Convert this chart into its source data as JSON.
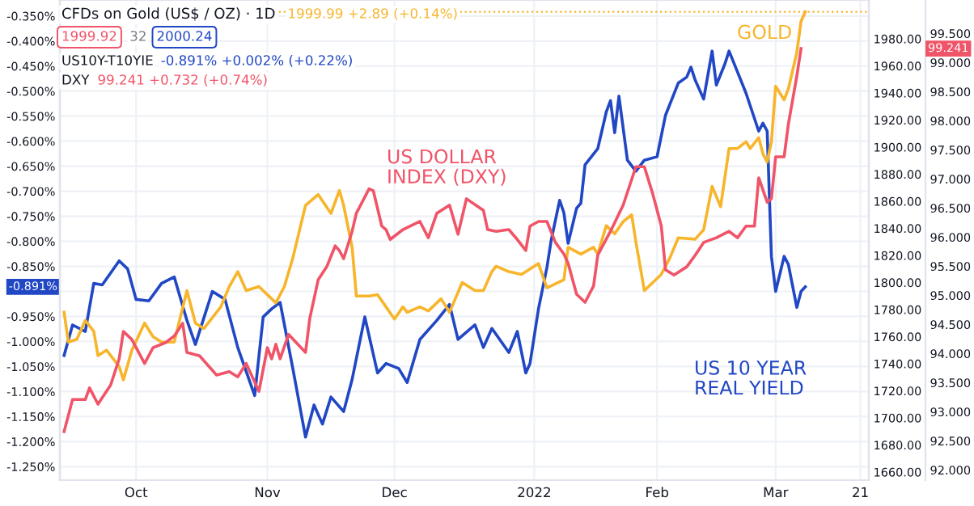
{
  "chart_data": {
    "type": "line",
    "title": "CFDs on Gold (US$ / OZ) · 1D",
    "annotations": [
      "1999.99 +2.89 (+0.14%)",
      "1999.92",
      "32",
      "2000.24",
      "US10Y-T10YIE",
      "-0.891% +0.002% (+0.22%)",
      "DXY",
      "99.241 +0.732 (+0.74%)",
      "-0.891%",
      "99.241"
    ],
    "xlim": [
      "2021-09-13",
      "2022-03-23"
    ],
    "xticks": [
      {
        "value": "2021-10-01",
        "label": "Oct"
      },
      {
        "value": "2021-11-01",
        "label": "Nov"
      },
      {
        "value": "2021-12-01",
        "label": "Dec"
      },
      {
        "value": "2022-01-03",
        "label": "2022"
      },
      {
        "value": "2022-02-01",
        "label": "Feb"
      },
      {
        "value": "2022-03-01",
        "label": "Mar"
      },
      {
        "value": "2022-03-21",
        "label": "21"
      }
    ],
    "ylim": [
      -1.277,
      -0.318
    ],
    "yticks": [
      {
        "value": -0.35,
        "label": "-0.350%"
      },
      {
        "value": -0.4,
        "label": "-0.400%"
      },
      {
        "value": -0.45,
        "label": "-0.450%"
      },
      {
        "value": -0.5,
        "label": "-0.500%"
      },
      {
        "value": -0.55,
        "label": "-0.550%"
      },
      {
        "value": -0.6,
        "label": "-0.600%"
      },
      {
        "value": -0.65,
        "label": "-0.650%"
      },
      {
        "value": -0.7,
        "label": "-0.700%"
      },
      {
        "value": -0.75,
        "label": "-0.750%"
      },
      {
        "value": -0.8,
        "label": "-0.800%"
      },
      {
        "value": -0.85,
        "label": "-0.850%"
      },
      {
        "value": -0.9,
        "label": null
      },
      {
        "value": -0.95,
        "label": "-0.950%"
      },
      {
        "value": -1.0,
        "label": "-1.000%"
      },
      {
        "value": -1.05,
        "label": "-1.050%"
      },
      {
        "value": -1.1,
        "label": "-1.100%"
      },
      {
        "value": -1.15,
        "label": "-1.150%"
      },
      {
        "value": -1.2,
        "label": "-1.200%"
      },
      {
        "value": -1.25,
        "label": "-1.250%"
      }
    ],
    "y2lim": [
      1654,
      2008.7
    ],
    "y2ticks": [
      {
        "value": 1660,
        "label": "1660.00"
      },
      {
        "value": 1680,
        "label": "1680.00"
      },
      {
        "value": 1700,
        "label": "1700.00"
      },
      {
        "value": 1720,
        "label": "1720.00"
      },
      {
        "value": 1740,
        "label": "1740.00"
      },
      {
        "value": 1760,
        "label": "1760.00"
      },
      {
        "value": 1780,
        "label": "1780.00"
      },
      {
        "value": 1800,
        "label": "1800.00"
      },
      {
        "value": 1820,
        "label": "1820.00"
      },
      {
        "value": 1840,
        "label": "1840.00"
      },
      {
        "value": 1860,
        "label": "1860.00"
      },
      {
        "value": 1880,
        "label": "1880.00"
      },
      {
        "value": 1900,
        "label": "1900.00"
      },
      {
        "value": 1920,
        "label": "1920.00"
      },
      {
        "value": 1940,
        "label": "1940.00"
      },
      {
        "value": 1960,
        "label": "1960.00"
      },
      {
        "value": 1980,
        "label": "1980.00"
      }
    ],
    "y3lim": [
      91.825,
      100.075
    ],
    "y3ticks": [
      {
        "value": 92.0,
        "label": "92.000"
      },
      {
        "value": 92.5,
        "label": "92.500"
      },
      {
        "value": 93.0,
        "label": "93.000"
      },
      {
        "value": 93.5,
        "label": "93.500"
      },
      {
        "value": 94.0,
        "label": "94.000"
      },
      {
        "value": 94.5,
        "label": "94.500"
      },
      {
        "value": 95.0,
        "label": "95.000"
      },
      {
        "value": 95.5,
        "label": "95.500"
      },
      {
        "value": 96.0,
        "label": "96.000"
      },
      {
        "value": 96.5,
        "label": "96.500"
      },
      {
        "value": 97.0,
        "label": "97.000"
      },
      {
        "value": 97.5,
        "label": "97.500"
      },
      {
        "value": 98.0,
        "label": "98.000"
      },
      {
        "value": 98.5,
        "label": "98.500"
      },
      {
        "value": 99.0,
        "label": "99.000"
      },
      {
        "value": 99.5,
        "label": "99.500"
      }
    ],
    "grid": true,
    "ref_lines": [
      {
        "axis": "y2",
        "value": 2000,
        "color": "#f7b52c",
        "line_style": "dotted"
      }
    ],
    "series": [
      {
        "name": "GOLD",
        "color": "#f7b52c",
        "axis": "y2",
        "x": [
          "2021-09-14",
          "2021-09-15",
          "2021-09-17",
          "2021-09-19",
          "2021-09-21",
          "2021-09-22",
          "2021-09-24",
          "2021-09-27",
          "2021-09-28",
          "2021-09-30",
          "2021-10-03",
          "2021-10-05",
          "2021-10-07",
          "2021-10-10",
          "2021-10-13",
          "2021-10-15",
          "2021-10-17",
          "2021-10-21",
          "2021-10-23",
          "2021-10-25",
          "2021-10-27",
          "2021-10-30",
          "2021-11-02",
          "2021-11-03",
          "2021-11-05",
          "2021-11-07",
          "2021-11-10",
          "2021-11-13",
          "2021-11-16",
          "2021-11-18",
          "2021-11-19",
          "2021-11-21",
          "2021-11-22",
          "2021-11-25",
          "2021-11-27",
          "2021-11-29",
          "2021-12-01",
          "2021-12-03",
          "2021-12-04",
          "2021-12-07",
          "2021-12-09",
          "2021-12-12",
          "2021-12-14",
          "2021-12-17",
          "2021-12-20",
          "2021-12-22",
          "2021-12-24",
          "2021-12-25",
          "2021-12-28",
          "2021-12-31",
          "2022-01-04",
          "2022-01-06",
          "2022-01-10",
          "2022-01-11",
          "2022-01-14",
          "2022-01-17",
          "2022-01-18",
          "2022-01-20",
          "2022-01-22",
          "2022-01-24",
          "2022-01-26",
          "2022-01-27",
          "2022-01-29",
          "2022-02-02",
          "2022-02-04",
          "2022-02-06",
          "2022-02-10",
          "2022-02-12",
          "2022-02-14",
          "2022-02-16",
          "2022-02-18",
          "2022-02-20",
          "2022-02-22",
          "2022-02-23",
          "2022-02-25",
          "2022-02-26",
          "2022-02-27",
          "2022-02-28",
          "2022-03-01",
          "2022-03-03",
          "2022-03-04",
          "2022-03-06",
          "2022-03-07",
          "2022-03-08"
        ],
        "values": [
          1778,
          1756,
          1758,
          1772,
          1764,
          1746,
          1750,
          1738,
          1728,
          1750,
          1770,
          1760,
          1756,
          1756,
          1794,
          1770,
          1766,
          1782,
          1797,
          1808,
          1794,
          1797,
          1788,
          1785,
          1797,
          1818,
          1857,
          1865,
          1851,
          1868,
          1857,
          1826,
          1790,
          1790,
          1791,
          1782,
          1773,
          1782,
          1778,
          1782,
          1779,
          1788,
          1778,
          1800,
          1794,
          1794,
          1808,
          1812,
          1808,
          1806,
          1814,
          1796,
          1802,
          1826,
          1821,
          1826,
          1821,
          1842,
          1836,
          1845,
          1850,
          1830,
          1794,
          1806,
          1818,
          1833,
          1832,
          1839,
          1871,
          1856,
          1899,
          1899,
          1904,
          1899,
          1907,
          1895,
          1889,
          1904,
          1945,
          1935,
          1943,
          1970,
          1993,
          2000
        ]
      },
      {
        "name": "US DOLLAR\nINDEX (DXY)",
        "color": "#f05468",
        "axis": "y3",
        "x": [
          "2021-09-14",
          "2021-09-16",
          "2021-09-19",
          "2021-09-20",
          "2021-09-22",
          "2021-09-25",
          "2021-09-27",
          "2021-09-28",
          "2021-09-30",
          "2021-10-03",
          "2021-10-05",
          "2021-10-08",
          "2021-10-10",
          "2021-10-12",
          "2021-10-13",
          "2021-10-16",
          "2021-10-20",
          "2021-10-23",
          "2021-10-25",
          "2021-10-27",
          "2021-10-30",
          "2021-11-01",
          "2021-11-02",
          "2021-11-03",
          "2021-11-04",
          "2021-11-06",
          "2021-11-10",
          "2021-11-11",
          "2021-11-13",
          "2021-11-15",
          "2021-11-17",
          "2021-11-18",
          "2021-11-19",
          "2021-11-21",
          "2021-11-22",
          "2021-11-25",
          "2021-11-26",
          "2021-11-28",
          "2021-11-29",
          "2021-11-30",
          "2021-12-03",
          "2021-12-07",
          "2021-12-09",
          "2021-12-11",
          "2021-12-14",
          "2021-12-16",
          "2021-12-18",
          "2021-12-22",
          "2021-12-23",
          "2021-12-25",
          "2021-12-28",
          "2021-12-30",
          "2022-01-01",
          "2022-01-02",
          "2022-01-04",
          "2022-01-06",
          "2022-01-08",
          "2022-01-10",
          "2022-01-11",
          "2022-01-13",
          "2022-01-15",
          "2022-01-17",
          "2022-01-18",
          "2022-01-21",
          "2022-01-24",
          "2022-01-27",
          "2022-01-29",
          "2022-01-31",
          "2022-02-02",
          "2022-02-03",
          "2022-02-05",
          "2022-02-08",
          "2022-02-10",
          "2022-02-12",
          "2022-02-15",
          "2022-02-18",
          "2022-02-20",
          "2022-02-22",
          "2022-02-24",
          "2022-02-25",
          "2022-02-27",
          "2022-02-28",
          "2022-03-01",
          "2022-03-03",
          "2022-03-04",
          "2022-03-06",
          "2022-03-07"
        ],
        "values": [
          92.66,
          93.21,
          93.21,
          93.41,
          93.13,
          93.46,
          93.91,
          94.38,
          94.24,
          93.83,
          94.1,
          94.19,
          94.3,
          94.52,
          94.02,
          93.96,
          93.63,
          93.69,
          93.6,
          93.83,
          93.35,
          94.1,
          93.91,
          94.16,
          93.91,
          94.33,
          94.02,
          94.6,
          95.27,
          95.49,
          95.85,
          95.77,
          95.63,
          96.1,
          96.41,
          96.83,
          96.8,
          96.19,
          96.13,
          95.96,
          96.13,
          96.27,
          95.99,
          96.41,
          96.55,
          96.05,
          96.66,
          96.46,
          96.13,
          96.1,
          96.13,
          95.96,
          95.77,
          96.19,
          96.27,
          96.27,
          95.91,
          95.71,
          95.55,
          95.02,
          94.88,
          95.16,
          95.69,
          96.1,
          96.55,
          97.21,
          97.21,
          96.74,
          96.19,
          95.44,
          95.35,
          95.49,
          95.69,
          95.91,
          95.99,
          96.1,
          95.99,
          96.19,
          96.19,
          97.02,
          96.6,
          96.66,
          97.38,
          97.38,
          97.94,
          98.77,
          99.24
        ]
      },
      {
        "name": "US 10 YEAR\nREAL YIELD",
        "color": "#2147c4",
        "axis": "y",
        "x": [
          "2021-09-14",
          "2021-09-16",
          "2021-09-19",
          "2021-09-21",
          "2021-09-23",
          "2021-09-27",
          "2021-09-29",
          "2021-10-01",
          "2021-10-04",
          "2021-10-07",
          "2021-10-10",
          "2021-10-13",
          "2021-10-15",
          "2021-10-19",
          "2021-10-22",
          "2021-10-25",
          "2021-10-29",
          "2021-10-31",
          "2021-11-02",
          "2021-11-04",
          "2021-11-07",
          "2021-11-10",
          "2021-11-12",
          "2021-11-14",
          "2021-11-16",
          "2021-11-19",
          "2021-11-21",
          "2021-11-24",
          "2021-11-27",
          "2021-11-29",
          "2021-12-02",
          "2021-12-04",
          "2021-12-07",
          "2021-12-11",
          "2021-12-14",
          "2021-12-16",
          "2021-12-20",
          "2021-12-22",
          "2021-12-24",
          "2021-12-28",
          "2021-12-30",
          "2022-01-01",
          "2022-01-02",
          "2022-01-04",
          "2022-01-06",
          "2022-01-07",
          "2022-01-09",
          "2022-01-10",
          "2022-01-11",
          "2022-01-13",
          "2022-01-14",
          "2022-01-15",
          "2022-01-18",
          "2022-01-20",
          "2022-01-21",
          "2022-01-22",
          "2022-01-23",
          "2022-01-25",
          "2022-01-27",
          "2022-01-29",
          "2022-02-01",
          "2022-02-03",
          "2022-02-06",
          "2022-02-08",
          "2022-02-09",
          "2022-02-10",
          "2022-02-12",
          "2022-02-14",
          "2022-02-15",
          "2022-02-17",
          "2022-02-18",
          "2022-02-20",
          "2022-02-22",
          "2022-02-25",
          "2022-02-26",
          "2022-02-27",
          "2022-02-28",
          "2022-03-01",
          "2022-03-03",
          "2022-03-04",
          "2022-03-06",
          "2022-03-07",
          "2022-03-08"
        ],
        "values": [
          -1.028,
          -0.967,
          -0.98,
          -0.884,
          -0.887,
          -0.839,
          -0.855,
          -0.916,
          -0.919,
          -0.884,
          -0.871,
          -0.958,
          -1.006,
          -0.9,
          -0.916,
          -1.012,
          -1.108,
          -0.951,
          -0.935,
          -0.922,
          -1.054,
          -1.191,
          -1.127,
          -1.165,
          -1.111,
          -1.14,
          -1.076,
          -0.951,
          -1.063,
          -1.044,
          -1.054,
          -1.082,
          -0.996,
          -0.958,
          -0.926,
          -0.996,
          -0.967,
          -1.012,
          -0.974,
          -1.022,
          -0.98,
          -1.063,
          -1.044,
          -0.935,
          -0.852,
          -0.798,
          -0.718,
          -0.743,
          -0.804,
          -0.734,
          -0.724,
          -0.647,
          -0.615,
          -0.542,
          -0.519,
          -0.583,
          -0.51,
          -0.638,
          -0.66,
          -0.638,
          -0.631,
          -0.548,
          -0.484,
          -0.472,
          -0.452,
          -0.478,
          -0.516,
          -0.42,
          -0.488,
          -0.446,
          -0.42,
          -0.462,
          -0.504,
          -0.58,
          -0.564,
          -0.58,
          -0.83,
          -0.9,
          -0.83,
          -0.846,
          -0.932,
          -0.9,
          -0.891
        ]
      }
    ]
  }
}
